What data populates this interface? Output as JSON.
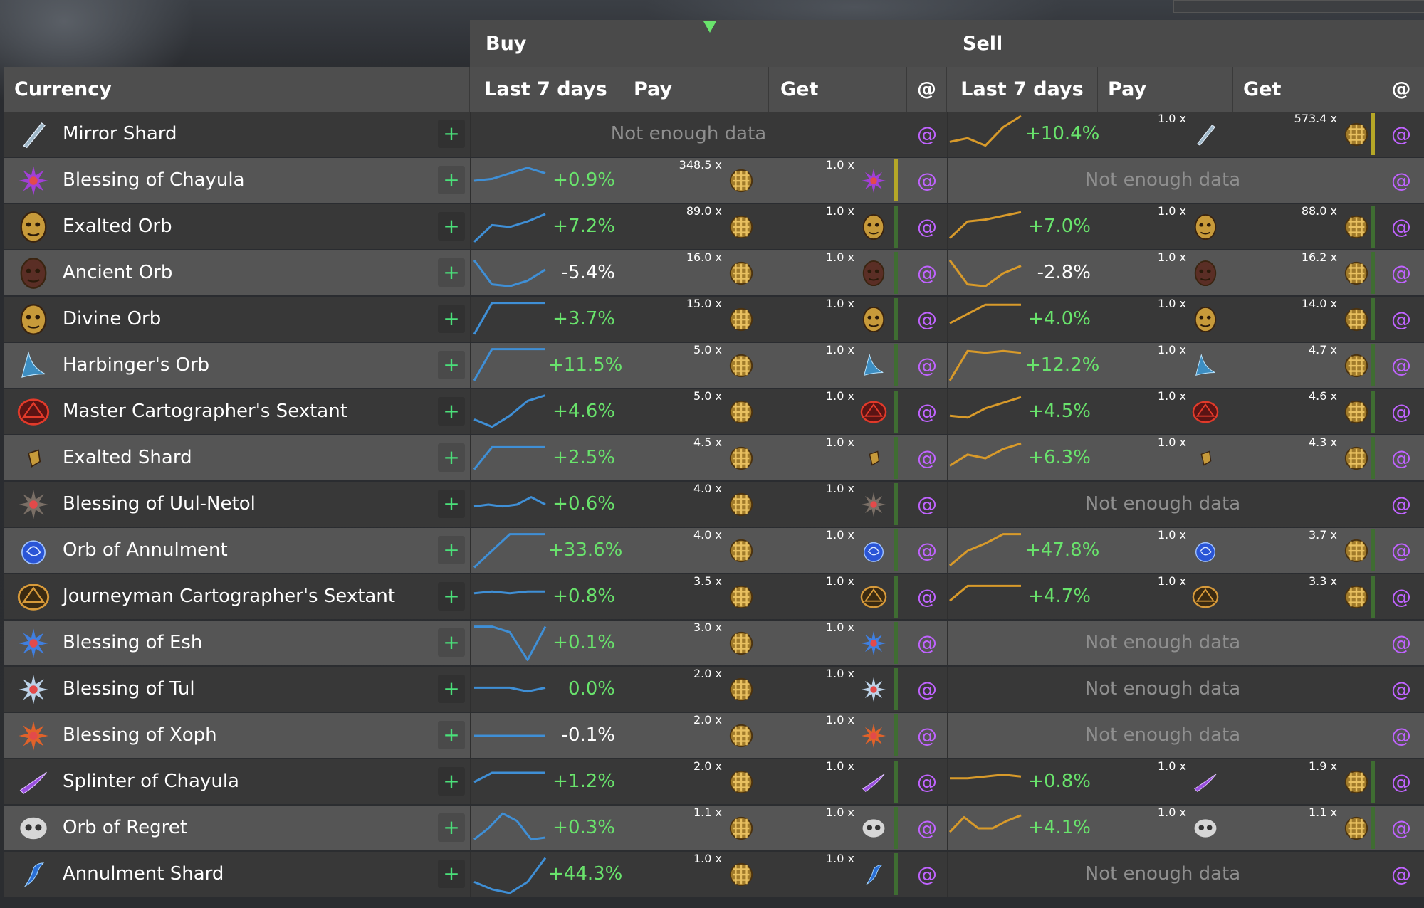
{
  "colors": {
    "positive": "#69e36c",
    "negative": "#ff2a2a",
    "buy_spark": "#3f8fd6",
    "sell_spark": "#d89a2a",
    "at_link": "#c063ff",
    "volume_high": "#b5a727",
    "volume_low": "#3f6d32"
  },
  "groups": {
    "buy": "Buy",
    "sell": "Sell"
  },
  "headers": {
    "currency": "Currency",
    "buy_last7": "Last 7 days",
    "buy_pay": "Pay",
    "buy_get": "Get",
    "buy_at": "@",
    "sell_last7": "Last 7 days",
    "sell_pay": "Pay",
    "sell_get": "Get",
    "sell_at": "@"
  },
  "labels": {
    "no_data": "Not enough data",
    "plus": "+",
    "at": "@"
  },
  "rows": [
    {
      "name": "Mirror Shard",
      "icon": "mirror-shard-icon",
      "buy": null,
      "sell": {
        "spark": [
          0.3,
          0.4,
          0.2,
          0.7,
          1.0
        ],
        "change": "+10.4%",
        "trend": "up",
        "pay": "1.0 x",
        "get": "573.4 x",
        "bar": "high"
      }
    },
    {
      "name": "Blessing of Chayula",
      "icon": "blessing-chayula-icon",
      "buy": {
        "spark": [
          0.5,
          0.55,
          0.7,
          0.85,
          0.7
        ],
        "change": "+0.9%",
        "trend": "up",
        "pay": "348.5 x",
        "get": "1.0 x",
        "bar": "high"
      },
      "sell": null
    },
    {
      "name": "Exalted Orb",
      "icon": "exalted-orb-icon",
      "buy": {
        "spark": [
          0.1,
          0.55,
          0.5,
          0.65,
          0.85
        ],
        "change": "+7.2%",
        "trend": "up",
        "pay": "89.0 x",
        "get": "1.0 x",
        "bar": "low"
      },
      "sell": {
        "spark": [
          0.2,
          0.65,
          0.7,
          0.8,
          0.9
        ],
        "change": "+7.0%",
        "trend": "up",
        "pay": "1.0 x",
        "get": "88.0 x",
        "bar": "low"
      }
    },
    {
      "name": "Ancient Orb",
      "icon": "ancient-orb-icon",
      "buy": {
        "spark": [
          0.85,
          0.2,
          0.15,
          0.3,
          0.6
        ],
        "change": "-5.4%",
        "trend": "down",
        "pay": "16.0 x",
        "get": "1.0 x",
        "bar": "low"
      },
      "sell": {
        "spark": [
          0.85,
          0.2,
          0.15,
          0.5,
          0.7
        ],
        "change": "-2.8%",
        "trend": "down",
        "pay": "1.0 x",
        "get": "16.2 x",
        "bar": "low"
      }
    },
    {
      "name": "Divine Orb",
      "icon": "divine-orb-icon",
      "buy": {
        "spark": [
          0.1,
          0.95,
          0.95,
          0.95,
          0.95
        ],
        "change": "+3.7%",
        "trend": "up",
        "pay": "15.0 x",
        "get": "1.0 x",
        "bar": "low"
      },
      "sell": {
        "spark": [
          0.4,
          0.65,
          0.9,
          0.9,
          0.9
        ],
        "change": "+4.0%",
        "trend": "up",
        "pay": "1.0 x",
        "get": "14.0 x",
        "bar": "low"
      }
    },
    {
      "name": "Harbinger's Orb",
      "icon": "harbingers-orb-icon",
      "buy": {
        "spark": [
          0.1,
          0.95,
          0.95,
          0.95,
          0.95
        ],
        "change": "+11.5%",
        "trend": "up",
        "pay": "5.0 x",
        "get": "1.0 x",
        "bar": "low"
      },
      "sell": {
        "spark": [
          0.1,
          0.9,
          0.85,
          0.9,
          0.85
        ],
        "change": "+12.2%",
        "trend": "up",
        "pay": "1.0 x",
        "get": "4.7 x",
        "bar": "low"
      }
    },
    {
      "name": "Master Cartographer's Sextant",
      "icon": "master-sextant-icon",
      "buy": {
        "spark": [
          0.3,
          0.1,
          0.4,
          0.8,
          0.95
        ],
        "change": "+4.6%",
        "trend": "up",
        "pay": "5.0 x",
        "get": "1.0 x",
        "bar": "low"
      },
      "sell": {
        "spark": [
          0.4,
          0.35,
          0.6,
          0.75,
          0.9
        ],
        "change": "+4.5%",
        "trend": "up",
        "pay": "1.0 x",
        "get": "4.6 x",
        "bar": "low"
      }
    },
    {
      "name": "Exalted Shard",
      "icon": "exalted-shard-icon",
      "buy": {
        "spark": [
          0.2,
          0.8,
          0.8,
          0.8,
          0.8
        ],
        "change": "+2.5%",
        "trend": "up",
        "pay": "4.5 x",
        "get": "1.0 x",
        "bar": "low"
      },
      "sell": {
        "spark": [
          0.3,
          0.6,
          0.5,
          0.75,
          0.9
        ],
        "change": "+6.3%",
        "trend": "up",
        "pay": "1.0 x",
        "get": "4.3 x",
        "bar": "low"
      }
    },
    {
      "name": "Blessing of Uul-Netol",
      "icon": "blessing-uul-netol-icon",
      "buy": {
        "spark": [
          0.45,
          0.5,
          0.45,
          0.5,
          0.7,
          0.5
        ],
        "change": "+0.6%",
        "trend": "up",
        "pay": "4.0 x",
        "get": "1.0 x",
        "bar": "low"
      },
      "sell": null
    },
    {
      "name": "Orb of Annulment",
      "icon": "orb-annulment-icon",
      "buy": {
        "spark": [
          0.05,
          0.5,
          0.95,
          0.95,
          0.95
        ],
        "change": "+33.6%",
        "trend": "up",
        "pay": "4.0 x",
        "get": "1.0 x",
        "bar": "low"
      },
      "sell": {
        "spark": [
          0.1,
          0.5,
          0.7,
          0.95,
          0.95
        ],
        "change": "+47.8%",
        "trend": "up",
        "pay": "1.0 x",
        "get": "3.7 x",
        "bar": "low"
      }
    },
    {
      "name": "Journeyman Cartographer's Sextant",
      "icon": "journeyman-sextant-icon",
      "buy": {
        "spark": [
          0.6,
          0.65,
          0.6,
          0.65,
          0.65
        ],
        "change": "+0.8%",
        "trend": "up",
        "pay": "3.5 x",
        "get": "1.0 x",
        "bar": "low"
      },
      "sell": {
        "spark": [
          0.4,
          0.8,
          0.8,
          0.8,
          0.8
        ],
        "change": "+4.7%",
        "trend": "up",
        "pay": "1.0 x",
        "get": "3.3 x",
        "bar": "low"
      }
    },
    {
      "name": "Blessing of Esh",
      "icon": "blessing-esh-icon",
      "buy": {
        "spark": [
          0.95,
          0.95,
          0.8,
          0.05,
          0.95
        ],
        "change": "+0.1%",
        "trend": "up",
        "pay": "3.0 x",
        "get": "1.0 x",
        "bar": "low"
      },
      "sell": null
    },
    {
      "name": "Blessing of Tul",
      "icon": "blessing-tul-icon",
      "buy": {
        "spark": [
          0.55,
          0.55,
          0.55,
          0.45,
          0.55
        ],
        "change": "0.0%",
        "trend": "flat",
        "pay": "2.0 x",
        "get": "1.0 x",
        "bar": "low"
      },
      "sell": null
    },
    {
      "name": "Blessing of Xoph",
      "icon": "blessing-xoph-icon",
      "buy": {
        "spark": [
          0.5,
          0.5,
          0.5,
          0.5,
          0.5
        ],
        "change": "-0.1%",
        "trend": "down",
        "pay": "2.0 x",
        "get": "1.0 x",
        "bar": "low"
      },
      "sell": null
    },
    {
      "name": "Splinter of Chayula",
      "icon": "splinter-chayula-icon",
      "buy": {
        "spark": [
          0.5,
          0.75,
          0.75,
          0.75,
          0.75
        ],
        "change": "+1.2%",
        "trend": "up",
        "pay": "2.0 x",
        "get": "1.0 x",
        "bar": "low"
      },
      "sell": {
        "spark": [
          0.6,
          0.6,
          0.65,
          0.7,
          0.65
        ],
        "change": "+0.8%",
        "trend": "up",
        "pay": "1.0 x",
        "get": "1.9 x",
        "bar": "low"
      }
    },
    {
      "name": "Orb of Regret",
      "icon": "orb-regret-icon",
      "buy": {
        "spark": [
          0.2,
          0.5,
          0.9,
          0.7,
          0.2,
          0.25
        ],
        "change": "+0.3%",
        "trend": "up",
        "pay": "1.1 x",
        "get": "1.0 x",
        "bar": "low"
      },
      "sell": {
        "spark": [
          0.4,
          0.8,
          0.5,
          0.5,
          0.7,
          0.85
        ],
        "change": "+4.1%",
        "trend": "up",
        "pay": "1.0 x",
        "get": "1.1 x",
        "bar": "low"
      }
    },
    {
      "name": "Annulment Shard",
      "icon": "annulment-shard-icon",
      "buy": {
        "spark": [
          0.3,
          0.1,
          0.0,
          0.3,
          0.95
        ],
        "change": "+44.3%",
        "trend": "up",
        "pay": "1.0 x",
        "get": "1.0 x",
        "bar": "low"
      },
      "sell": null
    }
  ]
}
